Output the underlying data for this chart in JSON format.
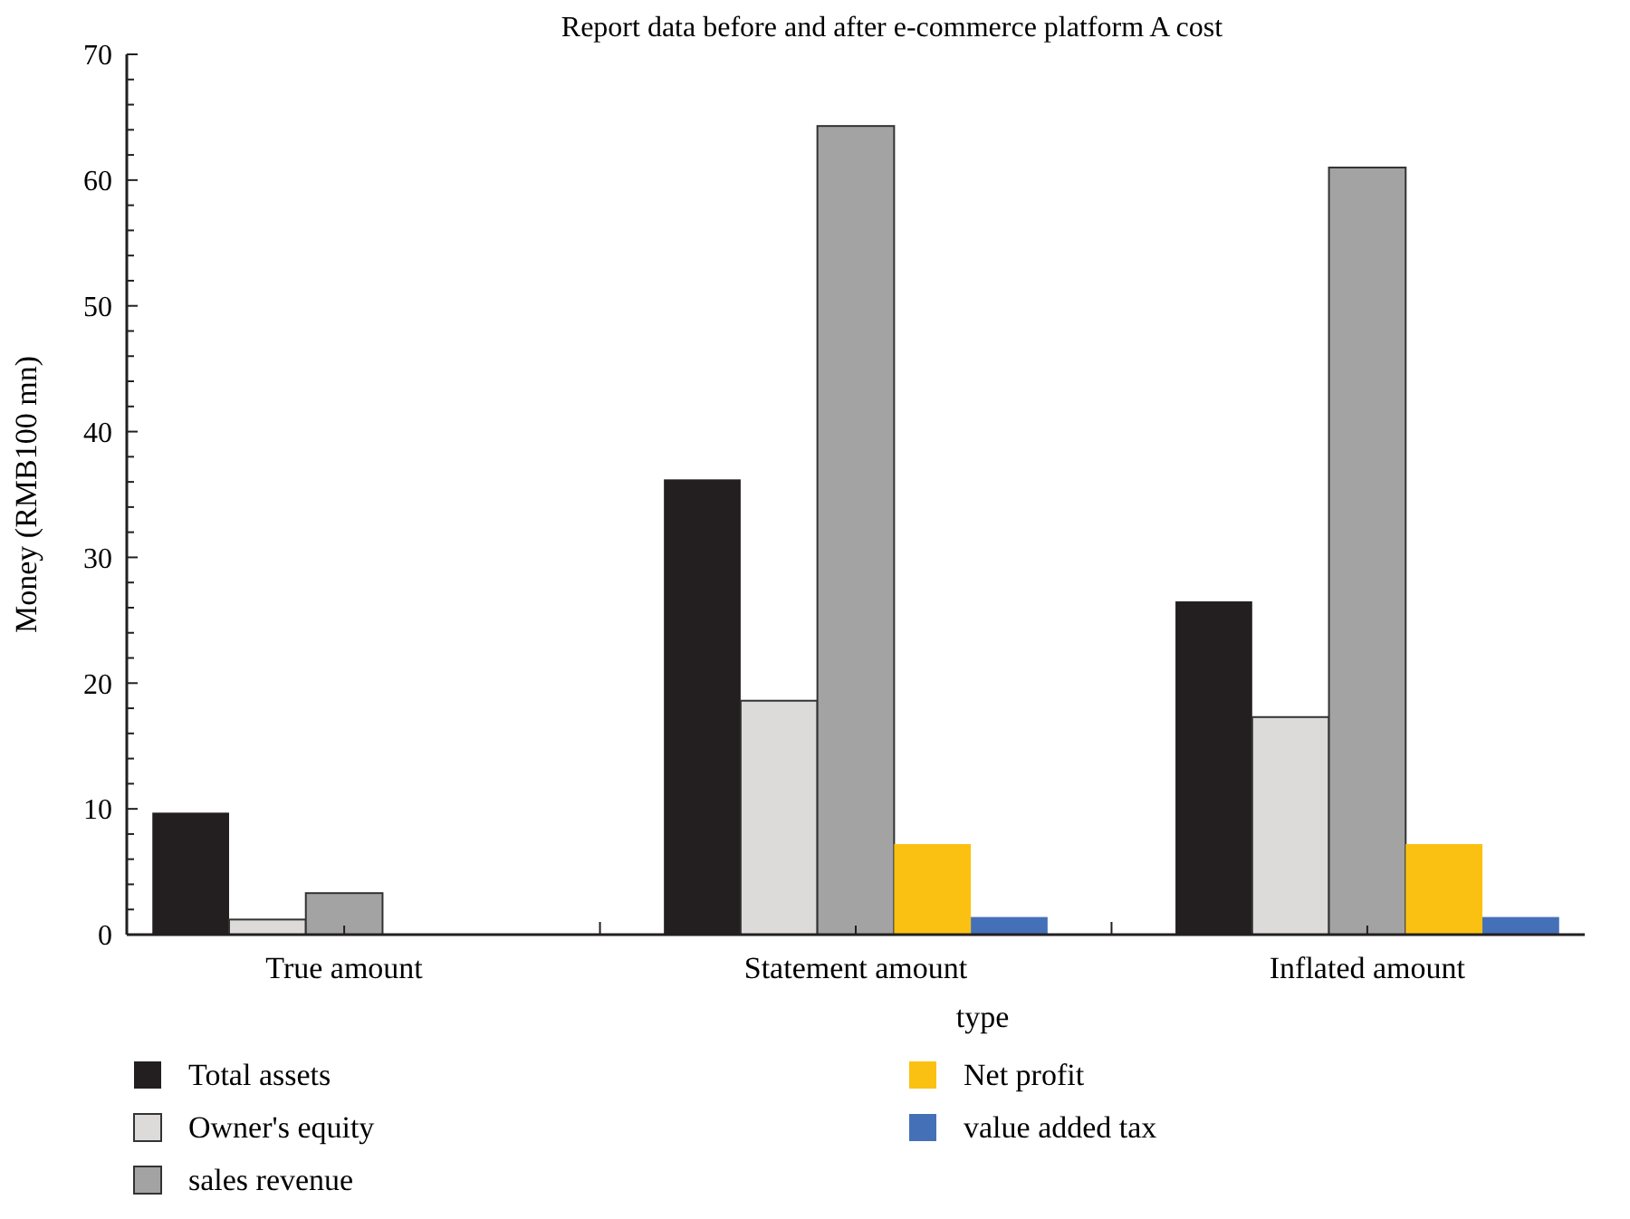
{
  "chart_data": {
    "type": "bar",
    "title": "Report data before and after e-commerce platform A cost",
    "xlabel": "type",
    "ylabel": "Money (RMB100 mn)",
    "categories": [
      "True amount",
      "Statement amount",
      "Inflated amount"
    ],
    "series": [
      {
        "name": "Total assets",
        "color": "#231f20",
        "values": [
          9.7,
          36.2,
          26.5
        ]
      },
      {
        "name": "Owner's equity",
        "color": "#dcdbda",
        "values": [
          1.2,
          18.6,
          17.3
        ]
      },
      {
        "name": "sales revenue",
        "color": "#a3a3a3",
        "values": [
          3.3,
          64.3,
          61.0
        ]
      },
      {
        "name": "Net profit",
        "color": "#fbc112",
        "values": [
          null,
          7.2,
          7.2
        ]
      },
      {
        "name": "value added tax",
        "color": "#4470b8",
        "values": [
          null,
          1.4,
          1.4
        ]
      }
    ],
    "ylim": [
      0,
      70
    ],
    "yticks": [
      0,
      {
        "value": 2,
        "label": null
      },
      {
        "value": 4,
        "label": null
      },
      {
        "value": 6,
        "label": null
      },
      {
        "value": 8,
        "label": null
      },
      10,
      {
        "value": 12,
        "label": null
      },
      {
        "value": 14,
        "label": null
      },
      {
        "value": 16,
        "label": null
      },
      {
        "value": 18,
        "label": null
      },
      20,
      {
        "value": 22,
        "label": null
      },
      {
        "value": 24,
        "label": null
      },
      {
        "value": 26,
        "label": null
      },
      {
        "value": 28,
        "label": null
      },
      30,
      {
        "value": 32,
        "label": null
      },
      {
        "value": 34,
        "label": null
      },
      {
        "value": 36,
        "label": null
      },
      {
        "value": 38,
        "label": null
      },
      40,
      {
        "value": 42,
        "label": null
      },
      {
        "value": 44,
        "label": null
      },
      {
        "value": 46,
        "label": null
      },
      {
        "value": 48,
        "label": null
      },
      50,
      {
        "value": 52,
        "label": null
      },
      {
        "value": 54,
        "label": null
      },
      {
        "value": 56,
        "label": null
      },
      {
        "value": 58,
        "label": null
      },
      60,
      {
        "value": 62,
        "label": null
      },
      {
        "value": 64,
        "label": null
      },
      {
        "value": 66,
        "label": null
      },
      {
        "value": 68,
        "label": null
      },
      70
    ],
    "grid": false,
    "legend": "bottom"
  }
}
